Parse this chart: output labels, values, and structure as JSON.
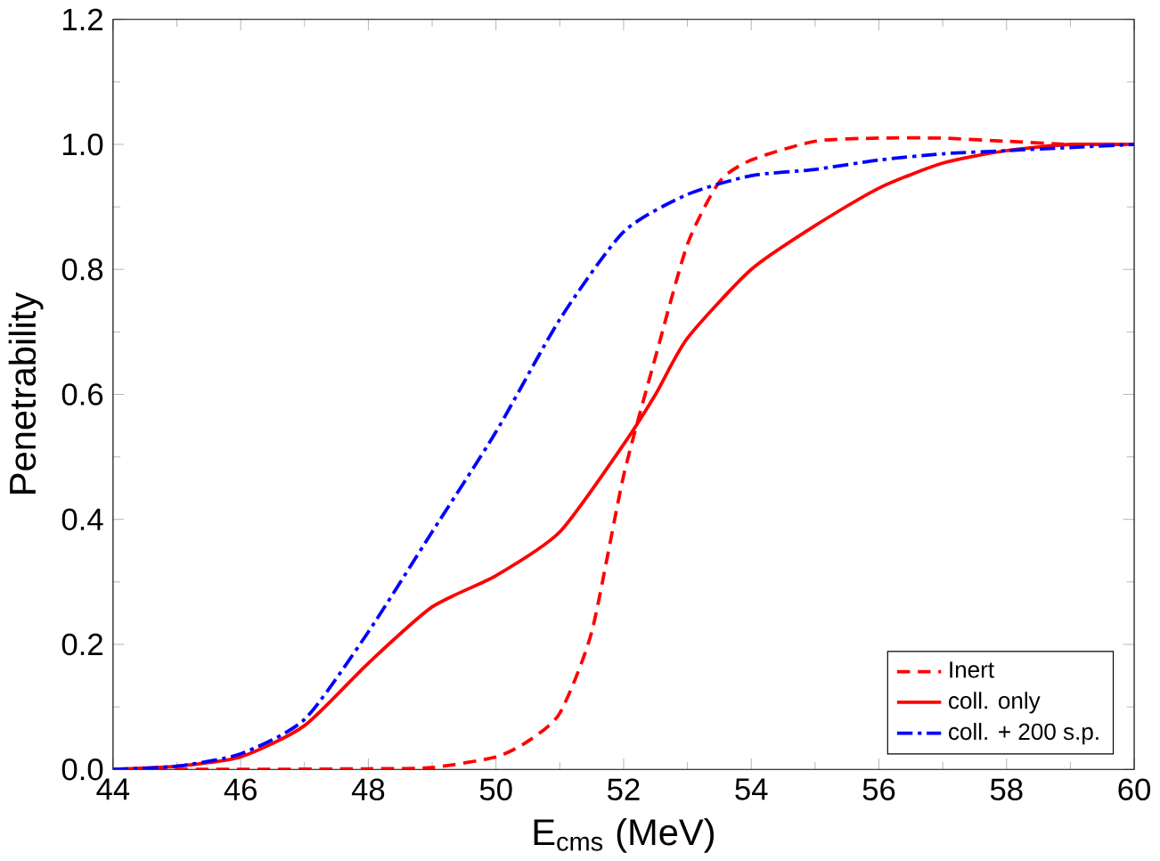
{
  "chart_data": {
    "type": "line",
    "xlabel": "E$_{cms}$ (MeV)",
    "ylabel": "Penetrability",
    "xlim": [
      44,
      60
    ],
    "ylim": [
      0,
      1.2
    ],
    "xticks": [
      44,
      46,
      48,
      50,
      52,
      54,
      56,
      58,
      60
    ],
    "yticks": [
      {
        "value": 0,
        "label": "0.0"
      },
      {
        "value": 0.2,
        "label": "0.2"
      },
      {
        "value": 0.4,
        "label": "0.4"
      },
      {
        "value": 0.6,
        "label": "0.6"
      },
      {
        "value": 0.8,
        "label": "0.8"
      },
      {
        "value": 1.0,
        "label": "1.0"
      },
      {
        "value": 1.2,
        "label": "1.2"
      }
    ],
    "legend": "bottom right",
    "grid": false,
    "marker": "none",
    "series": [
      {
        "name": "Inert",
        "color": "#ff0000",
        "line_style": "dashed",
        "x": [
          44,
          46,
          48,
          49,
          50,
          50.5,
          51,
          51.5,
          52,
          52.5,
          53,
          53.5,
          54,
          55,
          56,
          57,
          58,
          59,
          60
        ],
        "values": [
          0,
          0,
          0.001,
          0.003,
          0.02,
          0.045,
          0.09,
          0.22,
          0.47,
          0.66,
          0.84,
          0.94,
          0.975,
          1.005,
          1.01,
          1.01,
          1.005,
          1.0,
          1.0
        ]
      },
      {
        "name": "coll. only",
        "color": "#ff0000",
        "line_style": "solid",
        "x": [
          44,
          45,
          46,
          47,
          48,
          49,
          50,
          51,
          52,
          52.5,
          53,
          54,
          55,
          56,
          57,
          58,
          59,
          60
        ],
        "values": [
          0,
          0.005,
          0.02,
          0.07,
          0.17,
          0.26,
          0.31,
          0.38,
          0.52,
          0.6,
          0.69,
          0.8,
          0.87,
          0.93,
          0.97,
          0.99,
          1.0,
          1.0
        ]
      },
      {
        "name": "coll. + 200 s.p.",
        "color": "#0000ff",
        "line_style": "dashdot",
        "x": [
          44,
          45,
          46,
          47,
          48,
          49,
          50,
          51,
          52,
          53,
          54,
          55,
          56,
          57,
          58,
          59,
          60
        ],
        "values": [
          0,
          0.005,
          0.025,
          0.08,
          0.22,
          0.38,
          0.54,
          0.72,
          0.86,
          0.92,
          0.95,
          0.96,
          0.975,
          0.985,
          0.99,
          0.995,
          1.0
        ]
      }
    ]
  }
}
